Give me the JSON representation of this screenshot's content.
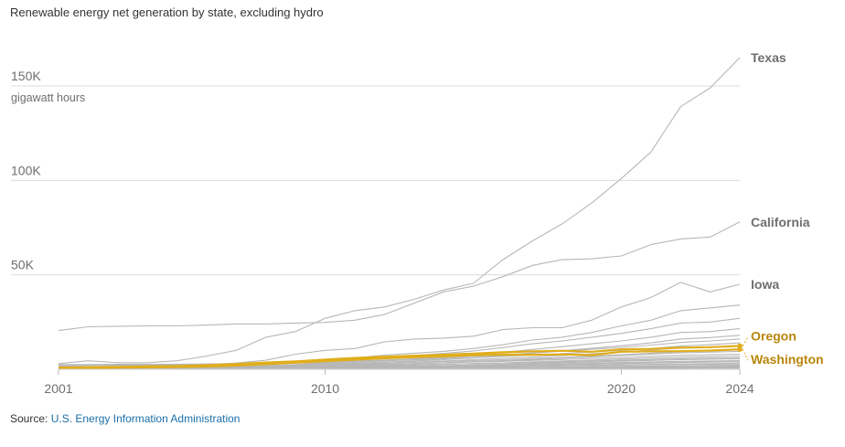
{
  "title": "Renewable energy net generation by state, excluding hydro",
  "source_prefix": "Source: ",
  "source_link": "U.S. Energy Information Administration",
  "colors": {
    "grid": "#dcdcdc",
    "line": "#b7b7b7",
    "highlight": "#e0ad1c",
    "highlight_label": "#b8860b",
    "label": "#6f6f6f"
  },
  "chart_data": {
    "type": "line",
    "x": [
      2001,
      2002,
      2003,
      2004,
      2005,
      2006,
      2007,
      2008,
      2009,
      2010,
      2011,
      2012,
      2013,
      2014,
      2015,
      2016,
      2017,
      2018,
      2019,
      2020,
      2021,
      2022,
      2023,
      2024
    ],
    "xticks": [
      "2001",
      "2010",
      "2020",
      "2024"
    ],
    "yticks": [
      {
        "value": 50000,
        "label": "50K"
      },
      {
        "value": 100000,
        "label": "100K"
      },
      {
        "value": 150000,
        "label": "150K"
      }
    ],
    "unit_label": "gigawatt hours",
    "ylim": [
      0,
      150000
    ],
    "series": [
      {
        "name": "Texas",
        "highlight": false,
        "values": [
          3000,
          4500,
          3500,
          3500,
          4500,
          7000,
          10000,
          17000,
          20000,
          27000,
          31000,
          33000,
          37000,
          42000,
          45500,
          58000,
          68000,
          77000,
          88000,
          101000,
          115000,
          139000,
          149000,
          165000
        ]
      },
      {
        "name": "California",
        "highlight": false,
        "values": [
          20500,
          22500,
          22800,
          23000,
          23000,
          23400,
          24000,
          24000,
          24500,
          24800,
          26000,
          29000,
          35000,
          41000,
          44000,
          49000,
          55000,
          58000,
          58500,
          60000,
          66000,
          69000,
          70000,
          78000
        ]
      },
      {
        "name": "Iowa",
        "highlight": false,
        "values": [
          800,
          1000,
          1200,
          1500,
          2000,
          2500,
          3300,
          4800,
          8000,
          10000,
          11000,
          14500,
          16000,
          16500,
          17500,
          21000,
          22000,
          22000,
          26000,
          33000,
          38000,
          46000,
          41000,
          45000
        ]
      },
      {
        "name": "Oregon",
        "highlight": true,
        "values": [
          900,
          1100,
          1300,
          1500,
          1700,
          2200,
          2800,
          3600,
          4200,
          5200,
          6000,
          6700,
          7200,
          7700,
          8300,
          9000,
          9500,
          9800,
          9300,
          10600,
          10800,
          11400,
          11700,
          12400
        ]
      },
      {
        "name": "Washington",
        "highlight": true,
        "values": [
          600,
          700,
          900,
          1000,
          1200,
          1500,
          2000,
          2700,
          3500,
          4300,
          5100,
          5800,
          6400,
          6800,
          7500,
          7800,
          7700,
          7900,
          7500,
          9300,
          9500,
          9600,
          9900,
          10600
        ]
      },
      {
        "values": [
          500,
          600,
          700,
          800,
          900,
          1200,
          1600,
          2400,
          3500,
          5000,
          6000,
          7500,
          8500,
          9500,
          11000,
          13000,
          15500,
          17000,
          19500,
          23000,
          26000,
          31000,
          32500,
          34000
        ]
      },
      {
        "values": [
          400,
          500,
          600,
          700,
          800,
          1000,
          1300,
          1800,
          2500,
          3500,
          4500,
          6000,
          7200,
          8400,
          9700,
          11500,
          13500,
          15000,
          17000,
          19000,
          21500,
          24500,
          25000,
          27000
        ]
      },
      {
        "values": [
          300,
          400,
          500,
          600,
          700,
          900,
          1200,
          1700,
          2300,
          3000,
          3700,
          4500,
          5500,
          6500,
          7700,
          9000,
          10500,
          12000,
          13500,
          15000,
          17000,
          19500,
          20000,
          21500
        ]
      },
      {
        "values": [
          400,
          400,
          500,
          500,
          600,
          800,
          1000,
          1400,
          1900,
          2500,
          3100,
          3800,
          4400,
          5100,
          6000,
          7200,
          8500,
          9800,
          11200,
          12500,
          14000,
          16000,
          16800,
          18000
        ]
      },
      {
        "values": [
          2000,
          2100,
          2200,
          2200,
          2300,
          2400,
          2600,
          2900,
          3300,
          3800,
          4300,
          4900,
          5400,
          6000,
          6800,
          7600,
          8600,
          9600,
          10600,
          11600,
          12800,
          14200,
          15000,
          16000
        ]
      },
      {
        "values": [
          2500,
          2500,
          2600,
          2600,
          2700,
          2800,
          3000,
          3200,
          3400,
          3700,
          4100,
          4500,
          5000,
          5500,
          6100,
          6800,
          7500,
          8300,
          9100,
          10000,
          11000,
          12300,
          13000,
          14000
        ]
      },
      {
        "values": [
          300,
          300,
          400,
          400,
          500,
          600,
          800,
          1100,
          1500,
          2000,
          2600,
          3200,
          3800,
          4400,
          5100,
          5800,
          6500,
          7300,
          8200,
          9100,
          10200,
          11300,
          11900,
          12500
        ]
      },
      {
        "values": [
          1500,
          1500,
          1600,
          1600,
          1700,
          1800,
          1900,
          2100,
          2300,
          2600,
          2900,
          3300,
          3700,
          4100,
          4600,
          5100,
          5700,
          6300,
          7000,
          7700,
          8500,
          9300,
          9800,
          10300
        ]
      },
      {
        "values": [
          200,
          200,
          300,
          300,
          400,
          500,
          700,
          900,
          1200,
          1600,
          2000,
          2500,
          3000,
          3500,
          4000,
          4600,
          5200,
          5900,
          6600,
          7300,
          8000,
          8700,
          9100,
          9500
        ]
      },
      {
        "values": [
          1000,
          1100,
          1100,
          1200,
          1200,
          1300,
          1400,
          1600,
          1800,
          2100,
          2400,
          2700,
          3000,
          3400,
          3800,
          4200,
          4700,
          5200,
          5700,
          6200,
          6800,
          7400,
          7700,
          8000
        ]
      },
      {
        "values": [
          200,
          200,
          200,
          300,
          300,
          400,
          500,
          700,
          900,
          1200,
          1500,
          1800,
          2200,
          2600,
          3000,
          3400,
          3900,
          4400,
          4900,
          5400,
          5900,
          6400,
          6700,
          7000
        ]
      },
      {
        "values": [
          800,
          800,
          800,
          900,
          900,
          1000,
          1100,
          1200,
          1400,
          1600,
          1800,
          2100,
          2400,
          2700,
          3000,
          3300,
          3600,
          4000,
          4400,
          4800,
          5200,
          5600,
          5900,
          6100
        ]
      },
      {
        "values": [
          100,
          100,
          200,
          200,
          200,
          300,
          400,
          500,
          700,
          900,
          1100,
          1400,
          1700,
          2000,
          2300,
          2700,
          3100,
          3500,
          3900,
          4300,
          4700,
          5100,
          5300,
          5500
        ]
      },
      {
        "values": [
          600,
          600,
          700,
          700,
          700,
          800,
          800,
          900,
          1000,
          1100,
          1300,
          1500,
          1700,
          1900,
          2100,
          2400,
          2700,
          3000,
          3300,
          3600,
          3900,
          4200,
          4400,
          4600
        ]
      },
      {
        "values": [
          100,
          100,
          100,
          200,
          200,
          200,
          300,
          400,
          500,
          600,
          800,
          1000,
          1200,
          1400,
          1600,
          1900,
          2200,
          2500,
          2800,
          3100,
          3400,
          3700,
          3900,
          4000
        ]
      },
      {
        "values": [
          400,
          400,
          400,
          400,
          500,
          500,
          600,
          600,
          700,
          800,
          900,
          1100,
          1300,
          1500,
          1700,
          1900,
          2100,
          2400,
          2700,
          3000,
          3300,
          3600,
          3800,
          3900
        ]
      },
      {
        "values": [
          100,
          100,
          100,
          100,
          100,
          200,
          200,
          300,
          400,
          500,
          600,
          800,
          1000,
          1200,
          1400,
          1600,
          1800,
          2000,
          2200,
          2400,
          2600,
          2800,
          3000,
          3100
        ]
      },
      {
        "values": [
          300,
          300,
          300,
          300,
          300,
          400,
          400,
          400,
          500,
          600,
          700,
          800,
          900,
          1000,
          1200,
          1400,
          1600,
          1800,
          2000,
          2200,
          2400,
          2600,
          2700,
          2800
        ]
      },
      {
        "values": [
          100,
          100,
          100,
          100,
          100,
          100,
          200,
          200,
          300,
          300,
          400,
          500,
          600,
          700,
          800,
          900,
          1000,
          1200,
          1400,
          1600,
          1800,
          2000,
          2100,
          2200
        ]
      },
      {
        "values": [
          200,
          200,
          200,
          200,
          200,
          200,
          300,
          300,
          300,
          400,
          400,
          500,
          600,
          700,
          800,
          900,
          1000,
          1100,
          1200,
          1300,
          1400,
          1500,
          1600,
          1700
        ]
      },
      {
        "values": [
          100,
          100,
          100,
          100,
          100,
          100,
          100,
          100,
          200,
          200,
          200,
          300,
          300,
          400,
          500,
          600,
          700,
          800,
          900,
          1000,
          1100,
          1200,
          1300,
          1400
        ]
      },
      {
        "values": [
          0,
          0,
          0,
          0,
          100,
          100,
          100,
          100,
          100,
          100,
          200,
          200,
          200,
          300,
          300,
          400,
          400,
          500,
          600,
          700,
          800,
          900,
          1000,
          1000
        ]
      },
      {
        "values": [
          0,
          0,
          0,
          0,
          0,
          0,
          0,
          100,
          100,
          100,
          100,
          100,
          200,
          200,
          200,
          300,
          300,
          300,
          400,
          400,
          500,
          500,
          600,
          600
        ]
      }
    ]
  }
}
